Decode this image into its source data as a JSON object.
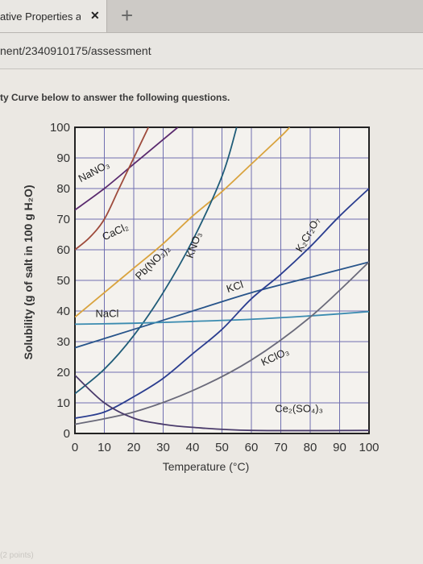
{
  "browser": {
    "tab_title": "ative Properties an",
    "tab_close": "✕",
    "new_tab": "+",
    "url": "nent/2340910175/assessment"
  },
  "page": {
    "instruction": "ty Curve below to answer the following questions.",
    "footer": "(2 points)"
  },
  "chart_data": {
    "type": "line",
    "xlabel": "Temperature (°C)",
    "ylabel": "Solubility (g of salt in 100 g H₂O)",
    "xlim": [
      0,
      100
    ],
    "ylim": [
      0,
      100
    ],
    "xticks": [
      0,
      10,
      20,
      30,
      40,
      50,
      60,
      70,
      80,
      90,
      100
    ],
    "yticks": [
      0,
      10,
      20,
      30,
      40,
      50,
      60,
      70,
      80,
      90,
      100
    ],
    "grid": true,
    "series": [
      {
        "name": "NaNO₃",
        "color": "#5a2a6e",
        "x": [
          0,
          10,
          20,
          30,
          35
        ],
        "y": [
          73,
          80,
          88,
          96,
          100
        ],
        "label_at": [
          2,
          82,
          -28
        ]
      },
      {
        "name": "CaCl₂",
        "color": "#9e4b3c",
        "x": [
          0,
          5,
          10,
          15,
          20,
          25
        ],
        "y": [
          60,
          64,
          70,
          80,
          90,
          100
        ],
        "label_at": [
          10,
          63,
          -25
        ]
      },
      {
        "name": "Pb(NO₃)₂",
        "color": "#d9a33e",
        "x": [
          0,
          10,
          20,
          30,
          40,
          50,
          60,
          70,
          73
        ],
        "y": [
          38,
          46,
          54,
          62,
          71,
          79,
          88,
          97,
          100
        ],
        "label_at": [
          22,
          50,
          -45
        ]
      },
      {
        "name": "KNO₃",
        "color": "#1f5c78",
        "x": [
          0,
          10,
          20,
          30,
          40,
          50,
          55
        ],
        "y": [
          13,
          21,
          32,
          46,
          63,
          84,
          100
        ],
        "label_at": [
          40,
          57,
          -70
        ]
      },
      {
        "name": "KCl",
        "color": "#27548a",
        "x": [
          0,
          20,
          40,
          60,
          80,
          100
        ],
        "y": [
          28,
          34,
          40,
          46,
          51,
          56
        ],
        "label_at": [
          52,
          46,
          -18
        ]
      },
      {
        "name": "NaCl",
        "color": "#3a8bb0",
        "x": [
          0,
          20,
          40,
          60,
          80,
          100
        ],
        "y": [
          35.7,
          36,
          36.6,
          37.3,
          38.4,
          39.8
        ],
        "label_at": [
          7,
          38,
          0
        ]
      },
      {
        "name": "K₂Cr₂O₇",
        "color": "#2a3d8f",
        "x": [
          0,
          10,
          20,
          30,
          40,
          50,
          60,
          70,
          80,
          90,
          100
        ],
        "y": [
          5,
          7,
          12,
          18,
          26,
          34,
          44,
          52,
          61,
          71,
          80
        ],
        "label_at": [
          77,
          59,
          -60
        ]
      },
      {
        "name": "KClO₃",
        "color": "#6a6a7a",
        "x": [
          0,
          20,
          40,
          60,
          80,
          100
        ],
        "y": [
          3,
          7,
          14,
          24,
          38,
          56
        ],
        "label_at": [
          64,
          22,
          -25
        ]
      },
      {
        "name": "Ce₂(SO₄)₃",
        "color": "#4a3b6b",
        "x": [
          0,
          10,
          20,
          30,
          40,
          60,
          100
        ],
        "y": [
          19,
          10,
          5,
          3,
          2,
          1,
          1
        ],
        "label_at": [
          68,
          7,
          0
        ]
      }
    ]
  }
}
